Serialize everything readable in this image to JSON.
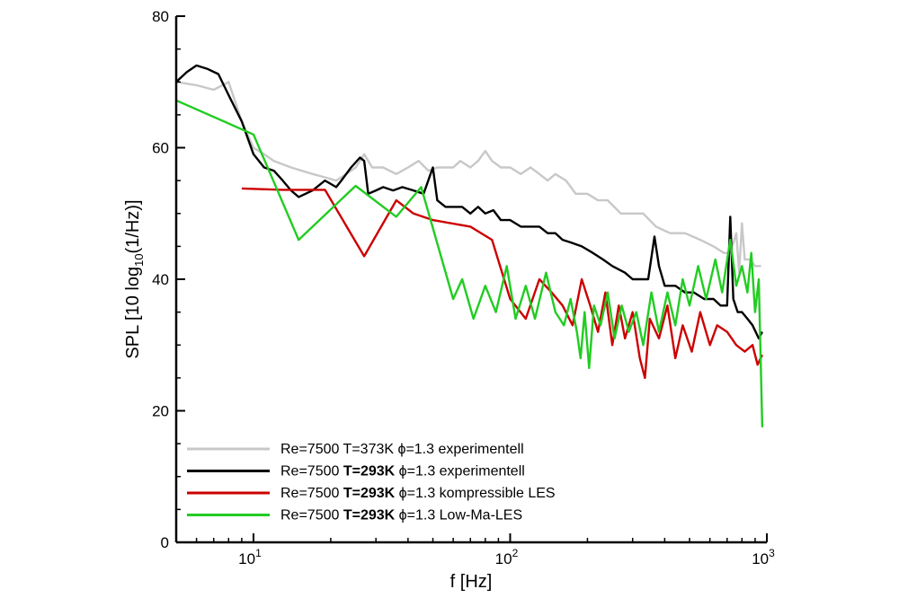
{
  "chart_data": {
    "type": "line",
    "xscale": "log",
    "xlim": [
      5,
      1000
    ],
    "ylim": [
      0,
      80
    ],
    "xlabel": "f [Hz]",
    "ylabel": {
      "main": "SPL [10 log",
      "sub": "10",
      "rest": "(1/Hz)]"
    },
    "x_ticks": [
      {
        "value": 10,
        "base": "10",
        "exp": "1"
      },
      {
        "value": 100,
        "base": "10",
        "exp": "2"
      },
      {
        "value": 1000,
        "base": "10",
        "exp": "3"
      }
    ],
    "y_ticks": [
      0,
      20,
      40,
      60,
      80
    ],
    "legend_position": "bottom-left",
    "series": [
      {
        "name": "Re=7500 T=373K ϕ=1.3 experimentell",
        "legend": {
          "re": "Re=7500 ",
          "temp": "T=373K",
          "temp_bold": false,
          "phi": " ϕ=1.3 ",
          "desc": "experimentell"
        },
        "color": "#c8c8c8",
        "points": [
          [
            5,
            70
          ],
          [
            6,
            69.5
          ],
          [
            7,
            68.8
          ],
          [
            8,
            70
          ],
          [
            9,
            64
          ],
          [
            10,
            60
          ],
          [
            11,
            59
          ],
          [
            12,
            58
          ],
          [
            14,
            57
          ],
          [
            17,
            56
          ],
          [
            19,
            55.5
          ],
          [
            21,
            55
          ],
          [
            23,
            56
          ],
          [
            25,
            57
          ],
          [
            27,
            59
          ],
          [
            29,
            57
          ],
          [
            32,
            57
          ],
          [
            36,
            56
          ],
          [
            40,
            57
          ],
          [
            44,
            58
          ],
          [
            48,
            56.5
          ],
          [
            52,
            57
          ],
          [
            56,
            57
          ],
          [
            60,
            57
          ],
          [
            64,
            58
          ],
          [
            70,
            57
          ],
          [
            75,
            58
          ],
          [
            80,
            59.5
          ],
          [
            85,
            58
          ],
          [
            92,
            57
          ],
          [
            100,
            57
          ],
          [
            110,
            56
          ],
          [
            120,
            57
          ],
          [
            130,
            56
          ],
          [
            140,
            55
          ],
          [
            150,
            56
          ],
          [
            165,
            55
          ],
          [
            180,
            53
          ],
          [
            200,
            53
          ],
          [
            220,
            52
          ],
          [
            240,
            52
          ],
          [
            270,
            50
          ],
          [
            300,
            50
          ],
          [
            330,
            50
          ],
          [
            370,
            48
          ],
          [
            420,
            47
          ],
          [
            480,
            47
          ],
          [
            550,
            46
          ],
          [
            620,
            45
          ],
          [
            680,
            44
          ],
          [
            720,
            44
          ],
          [
            760,
            47
          ],
          [
            780,
            41
          ],
          [
            800,
            48.5
          ],
          [
            820,
            43
          ],
          [
            860,
            43
          ],
          [
            900,
            42
          ],
          [
            950,
            42
          ]
        ]
      },
      {
        "name": "Re=7500 T=293K ϕ=1.3 experimentell",
        "legend": {
          "re": "Re=7500 ",
          "temp": "T=293K",
          "temp_bold": true,
          "phi": " ϕ=1.3 ",
          "desc": "experimentell"
        },
        "color": "#000000",
        "points": [
          [
            5,
            70
          ],
          [
            5.5,
            71.5
          ],
          [
            6,
            72.5
          ],
          [
            6.6,
            72
          ],
          [
            7.3,
            71.2
          ],
          [
            8,
            68
          ],
          [
            9,
            64
          ],
          [
            10,
            59
          ],
          [
            11,
            57
          ],
          [
            12,
            56.5
          ],
          [
            13,
            55
          ],
          [
            14,
            53.5
          ],
          [
            15,
            52.5
          ],
          [
            17,
            53.5
          ],
          [
            19,
            55
          ],
          [
            21,
            54
          ],
          [
            22,
            55
          ],
          [
            24,
            57
          ],
          [
            26,
            58.5
          ],
          [
            27,
            58
          ],
          [
            28,
            53
          ],
          [
            30,
            53.5
          ],
          [
            32,
            54
          ],
          [
            35,
            53.5
          ],
          [
            38,
            54
          ],
          [
            42,
            53.5
          ],
          [
            46,
            53
          ],
          [
            50,
            57
          ],
          [
            52,
            52
          ],
          [
            56,
            51
          ],
          [
            60,
            51
          ],
          [
            65,
            51
          ],
          [
            70,
            50
          ],
          [
            75,
            51
          ],
          [
            80,
            50
          ],
          [
            86,
            50.5
          ],
          [
            92,
            49
          ],
          [
            100,
            49
          ],
          [
            110,
            48
          ],
          [
            120,
            48
          ],
          [
            130,
            48
          ],
          [
            140,
            47
          ],
          [
            150,
            47
          ],
          [
            160,
            46
          ],
          [
            175,
            45.5
          ],
          [
            190,
            45
          ],
          [
            210,
            44
          ],
          [
            230,
            43
          ],
          [
            250,
            42
          ],
          [
            280,
            41
          ],
          [
            300,
            40
          ],
          [
            320,
            40
          ],
          [
            345,
            40
          ],
          [
            365,
            46.5
          ],
          [
            380,
            42
          ],
          [
            400,
            39
          ],
          [
            440,
            39
          ],
          [
            480,
            38
          ],
          [
            520,
            38
          ],
          [
            570,
            37
          ],
          [
            620,
            37
          ],
          [
            660,
            36
          ],
          [
            700,
            36
          ],
          [
            720,
            49.5
          ],
          [
            740,
            37
          ],
          [
            770,
            35
          ],
          [
            800,
            35
          ],
          [
            840,
            34
          ],
          [
            880,
            33
          ],
          [
            930,
            31
          ],
          [
            960,
            32
          ]
        ]
      },
      {
        "name": "Re=7500 T=293K ϕ=1.3 kompressible LES",
        "legend": {
          "re": "Re=7500 ",
          "temp": "T=293K",
          "temp_bold": true,
          "phi": " ϕ=1.3 ",
          "desc": "kompressible LES"
        },
        "color": "#cc0000",
        "points": [
          [
            9,
            53.8
          ],
          [
            13,
            53.6
          ],
          [
            19,
            53.6
          ],
          [
            27,
            43.5
          ],
          [
            36,
            52
          ],
          [
            42,
            50
          ],
          [
            50,
            49
          ],
          [
            70,
            48
          ],
          [
            85,
            46
          ],
          [
            100,
            37
          ],
          [
            115,
            34
          ],
          [
            130,
            40
          ],
          [
            145,
            38
          ],
          [
            160,
            36
          ],
          [
            175,
            33
          ],
          [
            190,
            40
          ],
          [
            205,
            36
          ],
          [
            220,
            32
          ],
          [
            235,
            38
          ],
          [
            250,
            30
          ],
          [
            265,
            36
          ],
          [
            280,
            31
          ],
          [
            300,
            35
          ],
          [
            320,
            28
          ],
          [
            335,
            25
          ],
          [
            350,
            34
          ],
          [
            380,
            31
          ],
          [
            410,
            36
          ],
          [
            440,
            28
          ],
          [
            470,
            33
          ],
          [
            510,
            29
          ],
          [
            550,
            35
          ],
          [
            600,
            30
          ],
          [
            640,
            33
          ],
          [
            700,
            32
          ],
          [
            760,
            30
          ],
          [
            820,
            29
          ],
          [
            880,
            30
          ],
          [
            920,
            27
          ],
          [
            960,
            28.5
          ]
        ]
      },
      {
        "name": "Re=7500 T=293K ϕ=1.3 Low-Ma-LES",
        "legend": {
          "re": "Re=7500 ",
          "temp": "T=293K",
          "temp_bold": true,
          "phi": " ϕ=1.3 ",
          "desc": "Low-Ma-LES"
        },
        "color": "#22cc22",
        "points": [
          [
            5,
            67.2
          ],
          [
            10,
            62
          ],
          [
            15,
            46
          ],
          [
            25,
            54.2
          ],
          [
            36,
            49.5
          ],
          [
            45,
            54
          ],
          [
            60,
            37
          ],
          [
            65,
            40
          ],
          [
            72,
            34
          ],
          [
            80,
            39
          ],
          [
            88,
            35
          ],
          [
            97,
            42
          ],
          [
            105,
            34
          ],
          [
            115,
            39
          ],
          [
            125,
            34
          ],
          [
            138,
            41
          ],
          [
            150,
            35
          ],
          [
            162,
            33
          ],
          [
            172,
            37
          ],
          [
            182,
            32
          ],
          [
            188,
            28
          ],
          [
            195,
            35
          ],
          [
            203,
            26.5
          ],
          [
            212,
            36
          ],
          [
            225,
            33
          ],
          [
            240,
            38
          ],
          [
            255,
            31
          ],
          [
            272,
            36
          ],
          [
            290,
            32
          ],
          [
            310,
            35
          ],
          [
            330,
            30
          ],
          [
            355,
            38
          ],
          [
            380,
            32
          ],
          [
            410,
            38
          ],
          [
            440,
            33
          ],
          [
            470,
            40
          ],
          [
            500,
            36
          ],
          [
            540,
            42
          ],
          [
            580,
            37
          ],
          [
            630,
            43
          ],
          [
            670,
            38
          ],
          [
            720,
            46
          ],
          [
            760,
            39
          ],
          [
            800,
            42
          ],
          [
            840,
            38
          ],
          [
            870,
            44
          ],
          [
            900,
            35
          ],
          [
            930,
            40
          ],
          [
            960,
            17.5
          ]
        ]
      }
    ]
  }
}
